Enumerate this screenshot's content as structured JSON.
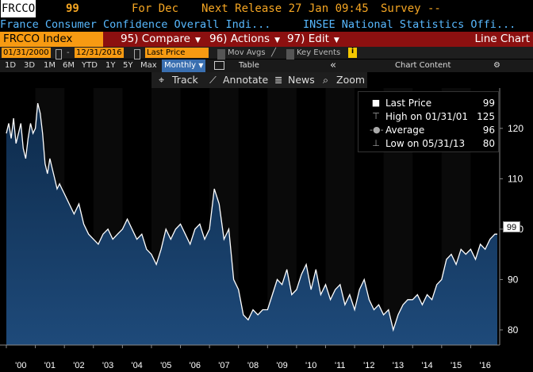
{
  "header": {
    "ticker": "FRCCO",
    "value": "99",
    "for_label": "For Dec",
    "next_release": "Next Release 27 Jan 09:45",
    "survey": "Survey --",
    "description": "France Consumer Confidence Overall Indi...",
    "source": "INSEE National Statistics Offi..."
  },
  "command_bar": {
    "index": "FRCCO Index",
    "compare": "95) Compare",
    "actions": "96) Actions",
    "edit": "97) Edit",
    "chart_type": "Line Chart"
  },
  "date_bar": {
    "start": "01/31/2000",
    "separator": "-",
    "end": "12/31/2016",
    "price_field": "Last Price",
    "mov_avgs": "Mov Avgs",
    "key_events": "Key Events",
    "info": "i"
  },
  "range_bar": {
    "ranges": [
      "1D",
      "3D",
      "1M",
      "6M",
      "YTD",
      "1Y",
      "5Y",
      "Max"
    ],
    "period": "Monthly",
    "table": "Table",
    "collapse": "«",
    "chart_content": "Chart Content",
    "settings": "⚙"
  },
  "toolbar": {
    "track": "Track",
    "annotate": "Annotate",
    "news": "News",
    "zoom": "Zoom"
  },
  "legend": {
    "last_price": {
      "label": "Last Price",
      "value": "99"
    },
    "high": {
      "label": "High on 01/31/01",
      "value": "125"
    },
    "average": {
      "label": "Average",
      "value": "96"
    },
    "low": {
      "label": "Low on 05/31/13",
      "value": "80"
    }
  },
  "last_value_tag": "99",
  "colors": {
    "amber": "#f5a623",
    "blue_text": "#58b9ff",
    "orange": "#f79a12",
    "dark_red": "#8c1010",
    "area_top": "#0d2a4a",
    "area_bottom": "#1e4a7a"
  },
  "chart_data": {
    "type": "area",
    "title": "",
    "xlabel": "",
    "ylabel": "",
    "ylim": [
      77,
      128
    ],
    "y_ticks": [
      80,
      90,
      100,
      110,
      120
    ],
    "x_tick_labels": [
      "'00",
      "'01",
      "'02",
      "'03",
      "'04",
      "'05",
      "'06",
      "'07",
      "'08",
      "'09",
      "'10",
      "'11",
      "'12",
      "'13",
      "'14",
      "'15",
      "'16"
    ],
    "x_start_year": 2000,
    "x_end_year": 2017,
    "series": [
      {
        "name": "Last Price",
        "x": [
          2000.0,
          2000.083,
          2000.167,
          2000.25,
          2000.333,
          2000.417,
          2000.5,
          2000.583,
          2000.667,
          2000.75,
          2000.833,
          2000.917,
          2001.0,
          2001.083,
          2001.167,
          2001.25,
          2001.333,
          2001.417,
          2001.5,
          2001.583,
          2001.667,
          2001.75,
          2001.833,
          2001.917,
          2002.0,
          2002.167,
          2002.333,
          2002.5,
          2002.667,
          2002.833,
          2003.0,
          2003.167,
          2003.333,
          2003.5,
          2003.667,
          2003.833,
          2004.0,
          2004.167,
          2004.333,
          2004.5,
          2004.667,
          2004.833,
          2005.0,
          2005.167,
          2005.333,
          2005.5,
          2005.667,
          2005.833,
          2006.0,
          2006.167,
          2006.333,
          2006.5,
          2006.667,
          2006.833,
          2007.0,
          2007.167,
          2007.333,
          2007.5,
          2007.667,
          2007.833,
          2008.0,
          2008.167,
          2008.333,
          2008.5,
          2008.667,
          2008.833,
          2009.0,
          2009.167,
          2009.333,
          2009.5,
          2009.667,
          2009.833,
          2010.0,
          2010.167,
          2010.333,
          2010.5,
          2010.667,
          2010.833,
          2011.0,
          2011.167,
          2011.333,
          2011.5,
          2011.667,
          2011.833,
          2012.0,
          2012.167,
          2012.333,
          2012.5,
          2012.667,
          2012.833,
          2013.0,
          2013.167,
          2013.333,
          2013.5,
          2013.667,
          2013.833,
          2014.0,
          2014.167,
          2014.333,
          2014.5,
          2014.667,
          2014.833,
          2015.0,
          2015.167,
          2015.333,
          2015.5,
          2015.667,
          2015.833,
          2016.0,
          2016.167,
          2016.333,
          2016.5,
          2016.667,
          2016.833,
          2016.917
        ],
        "values": [
          119,
          121,
          118,
          122,
          117,
          119,
          121,
          116,
          114,
          118,
          121,
          119,
          120,
          125,
          123,
          119,
          113,
          111,
          114,
          112,
          110,
          108,
          109,
          108,
          107,
          105,
          103,
          105,
          101,
          99,
          98,
          97,
          99,
          100,
          98,
          99,
          100,
          102,
          100,
          98,
          99,
          96,
          95,
          93,
          96,
          100,
          98,
          100,
          101,
          99,
          97,
          100,
          101,
          98,
          100,
          108,
          105,
          98,
          100,
          90,
          88,
          83,
          82,
          84,
          83,
          84,
          84,
          87,
          90,
          89,
          92,
          87,
          88,
          91,
          93,
          88,
          92,
          87,
          89,
          86,
          88,
          89,
          85,
          87,
          84,
          88,
          90,
          86,
          84,
          85,
          83,
          84,
          80,
          83,
          85,
          86,
          86,
          87,
          85,
          87,
          86,
          89,
          90,
          94,
          95,
          93,
          96,
          95,
          96,
          94,
          97,
          96,
          98,
          99,
          99
        ]
      }
    ]
  }
}
